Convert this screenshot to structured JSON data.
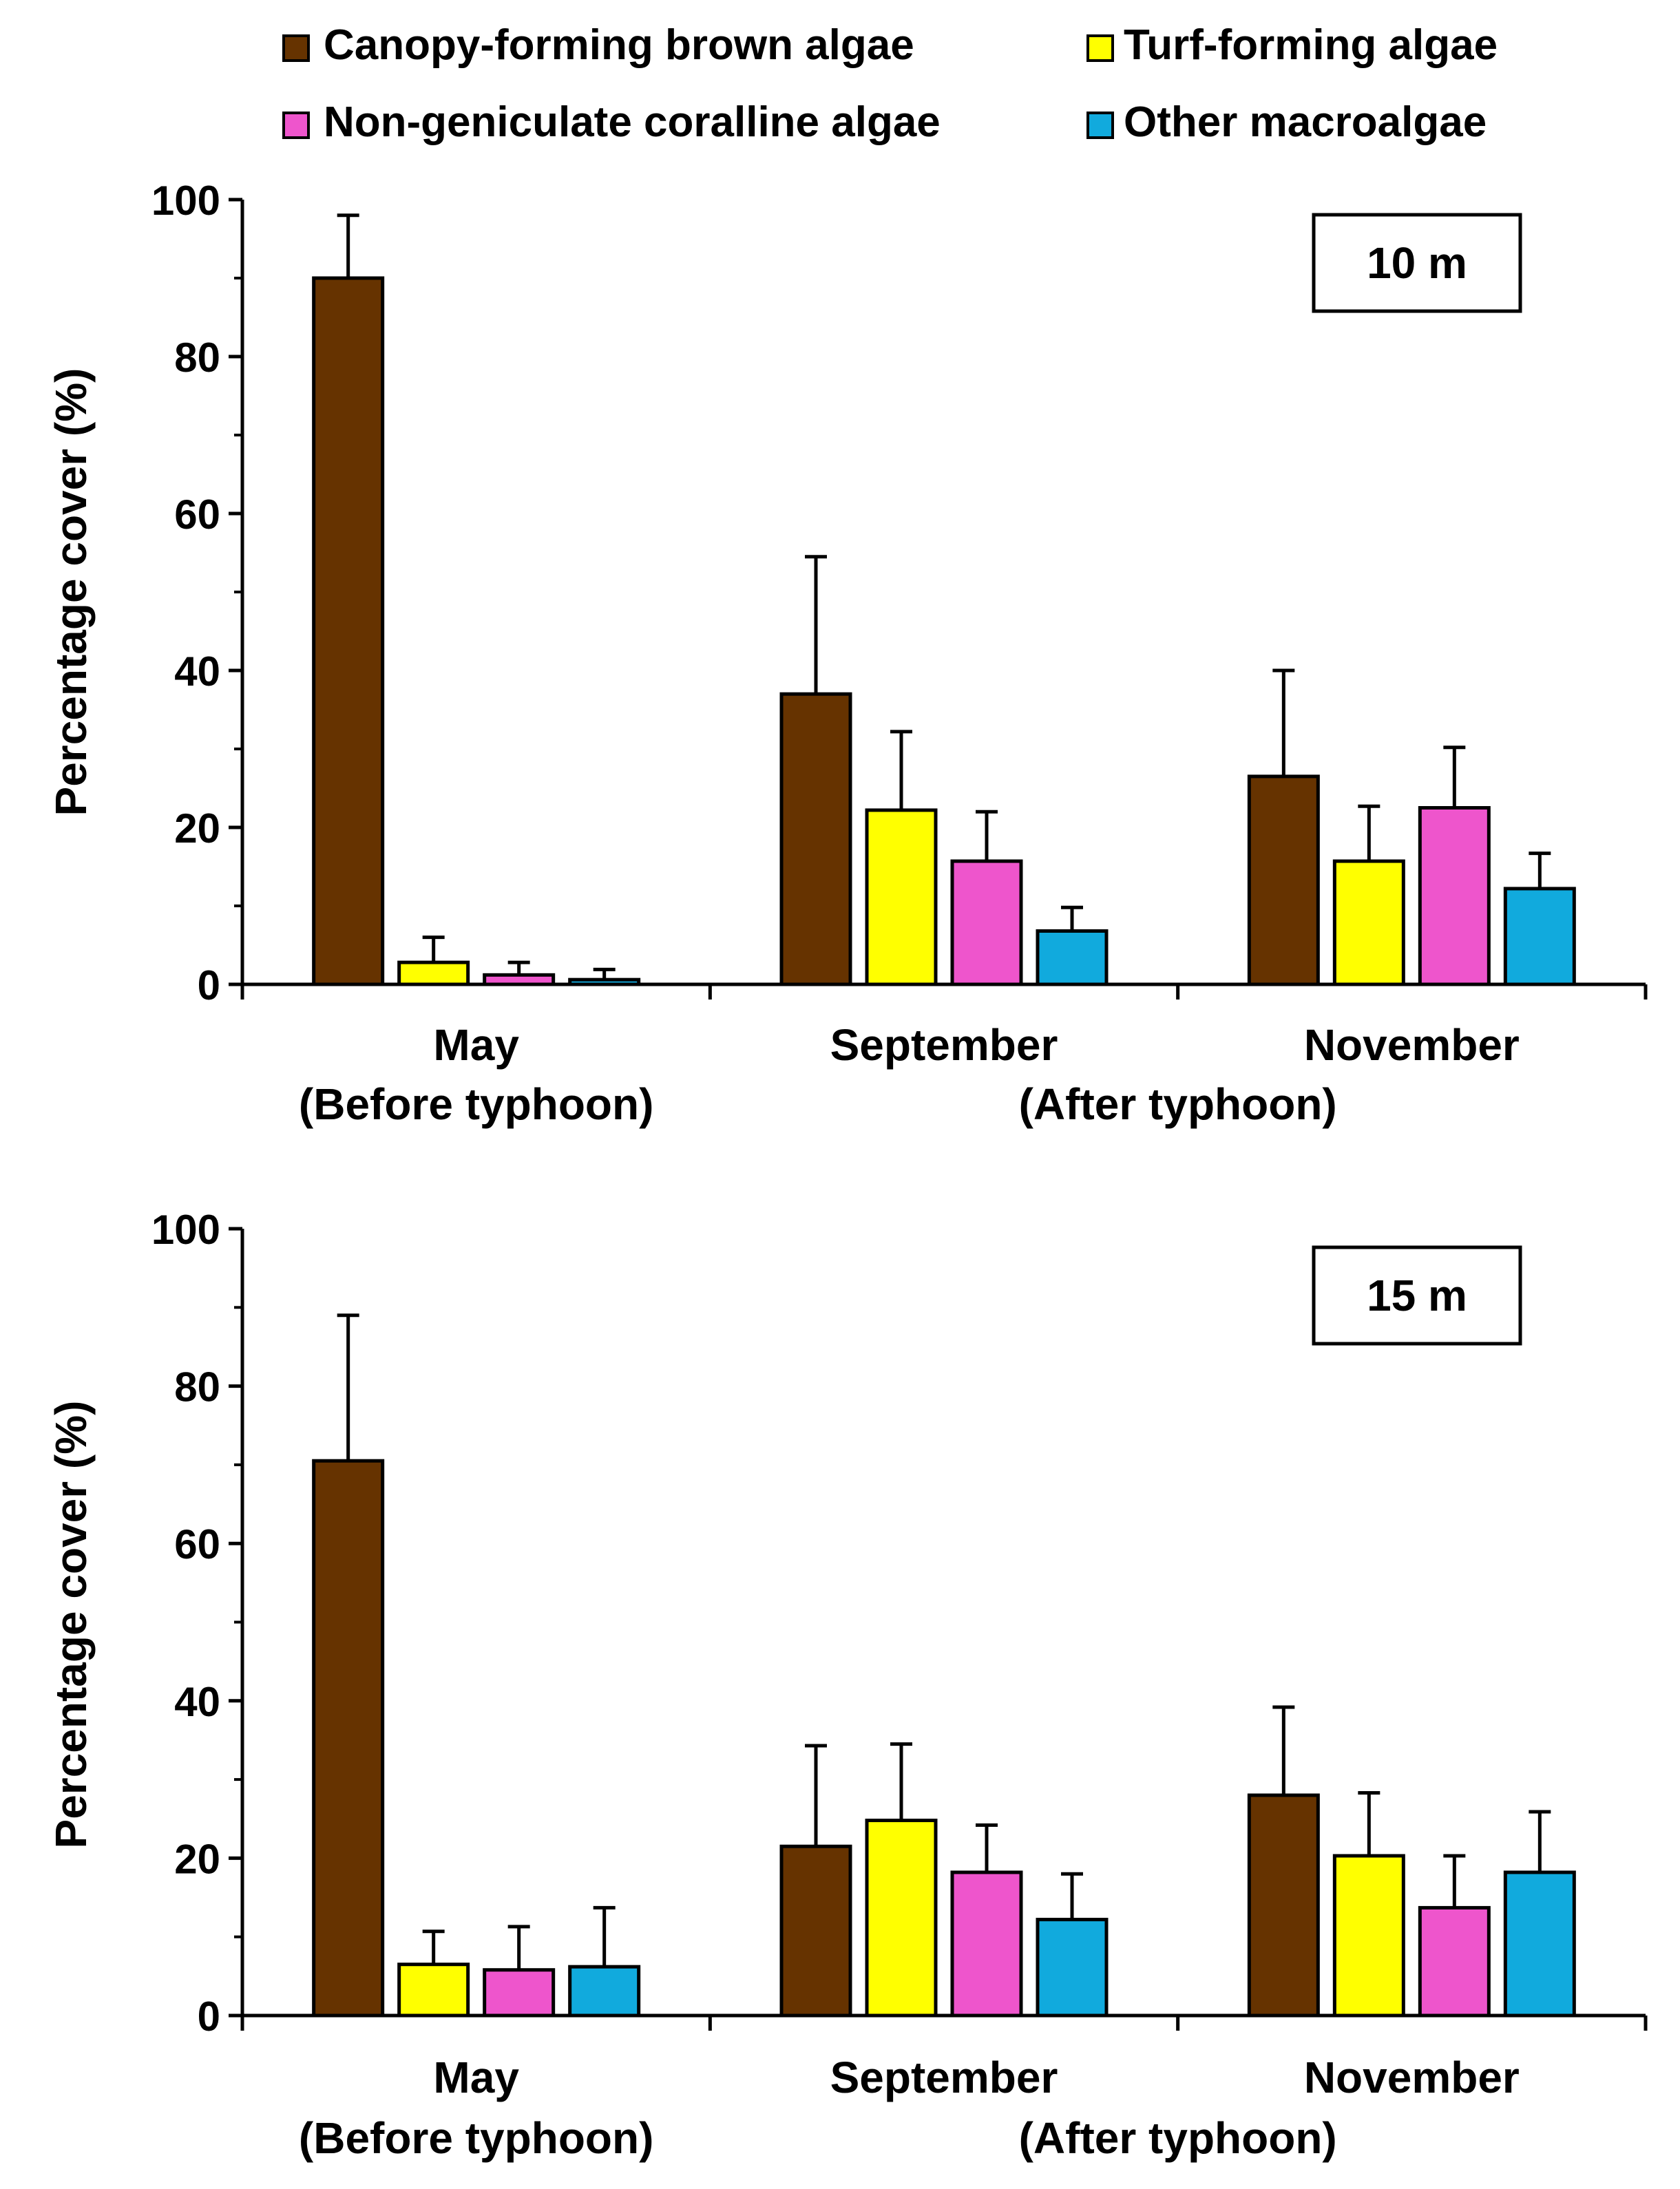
{
  "legend": {
    "items": [
      {
        "label": "Canopy-forming brown algae",
        "color": "#663300"
      },
      {
        "label": "Turf-forming algae",
        "color": "#FFFF00"
      },
      {
        "label": "Non-geniculate coralline algae",
        "color": "#EE55CC"
      },
      {
        "label": "Other macroalgae",
        "color": "#11AADD"
      }
    ]
  },
  "chart_data": [
    {
      "type": "bar",
      "panel_label": "10 m",
      "ylabel": "Percentage cover (%)",
      "ylim": [
        0,
        100
      ],
      "yticks": [
        "0",
        "20",
        "40",
        "60",
        "80",
        "100"
      ],
      "categories": [
        "May",
        "September",
        "November"
      ],
      "category_sublabels": [
        "(Before typhoon)",
        "(After typhoon)"
      ],
      "series": [
        {
          "name": "Canopy-forming brown algae",
          "color": "#663300",
          "values": [
            90,
            37,
            26.5
          ],
          "errors": [
            8,
            17.5,
            13.5
          ]
        },
        {
          "name": "Turf-forming algae",
          "color": "#FFFF00",
          "values": [
            2.8,
            22.2,
            15.7
          ],
          "errors": [
            3.2,
            10,
            7
          ]
        },
        {
          "name": "Non-geniculate coralline algae",
          "color": "#EE55CC",
          "values": [
            1.2,
            15.7,
            22.5
          ],
          "errors": [
            1.6,
            6.3,
            7.7
          ]
        },
        {
          "name": "Other macroalgae",
          "color": "#11AADD",
          "values": [
            0.6,
            6.8,
            12.2
          ],
          "errors": [
            1.3,
            3,
            4.5
          ]
        }
      ]
    },
    {
      "type": "bar",
      "panel_label": "15 m",
      "ylabel": "Percentage cover (%)",
      "ylim": [
        0,
        100
      ],
      "yticks": [
        "0",
        "20",
        "40",
        "60",
        "80",
        "100"
      ],
      "categories": [
        "May",
        "September",
        "November"
      ],
      "category_sublabels": [
        "(Before typhoon)",
        "(After typhoon)"
      ],
      "series": [
        {
          "name": "Canopy-forming brown algae",
          "color": "#663300",
          "values": [
            70.5,
            21.5,
            28
          ],
          "errors": [
            18.5,
            12.8,
            11.2
          ]
        },
        {
          "name": "Turf-forming algae",
          "color": "#FFFF00",
          "values": [
            6.5,
            24.8,
            20.3
          ],
          "errors": [
            4.2,
            9.7,
            8
          ]
        },
        {
          "name": "Non-geniculate coralline algae",
          "color": "#EE55CC",
          "values": [
            5.8,
            18.2,
            13.7
          ],
          "errors": [
            5.5,
            6,
            6.6
          ]
        },
        {
          "name": "Other macroalgae",
          "color": "#11AADD",
          "values": [
            6.2,
            12.2,
            18.2
          ],
          "errors": [
            7.5,
            5.8,
            7.7
          ]
        }
      ]
    }
  ]
}
